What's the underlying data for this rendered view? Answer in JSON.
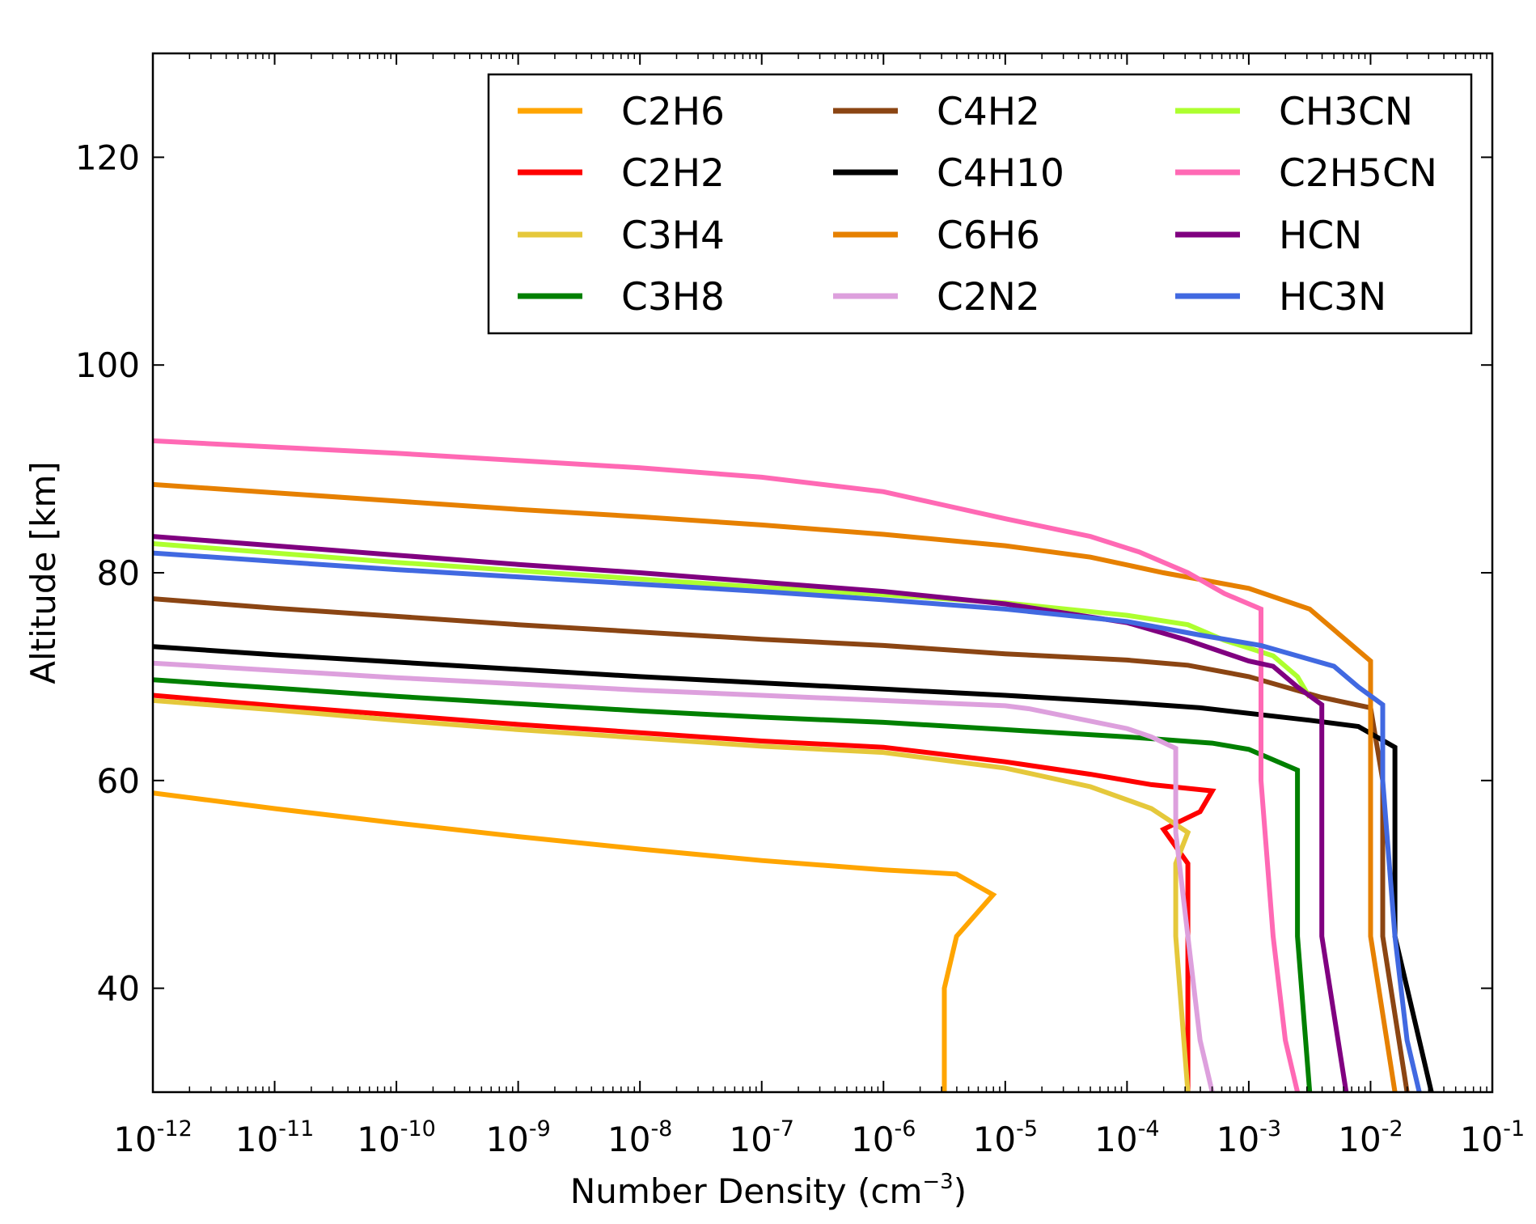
{
  "chart_data": {
    "type": "line",
    "xscale": "log",
    "xlim": [
      -12,
      -1
    ],
    "ylim": [
      30,
      130
    ],
    "xlabel": {
      "base": "Number Density (cm",
      "exp": "−3",
      "close": ")"
    },
    "ylabel": "Altitude [km]",
    "x_ticks": [
      {
        "mantissa": "10",
        "exp": "-12"
      },
      {
        "mantissa": "10",
        "exp": "-11"
      },
      {
        "mantissa": "10",
        "exp": "-10"
      },
      {
        "mantissa": "10",
        "exp": "-9"
      },
      {
        "mantissa": "10",
        "exp": "-8"
      },
      {
        "mantissa": "10",
        "exp": "-7"
      },
      {
        "mantissa": "10",
        "exp": "-6"
      },
      {
        "mantissa": "10",
        "exp": "-5"
      },
      {
        "mantissa": "10",
        "exp": "-4"
      },
      {
        "mantissa": "10",
        "exp": "-3"
      },
      {
        "mantissa": "10",
        "exp": "-2"
      },
      {
        "mantissa": "10",
        "exp": "-1"
      }
    ],
    "y_ticks": [
      "40",
      "60",
      "80",
      "100",
      "120"
    ],
    "legend_location": "upper-right",
    "legend_columns": 3,
    "series": [
      {
        "name": "C2H6",
        "color": "#FFA500",
        "points": [
          [
            -12,
            58.8
          ],
          [
            -11,
            57.3
          ],
          [
            -10,
            55.9
          ],
          [
            -9,
            54.6
          ],
          [
            -8,
            53.4
          ],
          [
            -7,
            52.3
          ],
          [
            -6,
            51.4
          ],
          [
            -5.4,
            51
          ],
          [
            -5.1,
            49
          ],
          [
            -5.4,
            45
          ],
          [
            -5.5,
            40
          ],
          [
            -5.5,
            30
          ]
        ]
      },
      {
        "name": "C2H2",
        "color": "#FF0000",
        "points": [
          [
            -12,
            68.2
          ],
          [
            -11,
            67.2
          ],
          [
            -10,
            66.3
          ],
          [
            -9,
            65.4
          ],
          [
            -8,
            64.6
          ],
          [
            -7,
            63.8
          ],
          [
            -6,
            63.2
          ],
          [
            -5,
            61.8
          ],
          [
            -4.3,
            60.6
          ],
          [
            -3.8,
            59.6
          ],
          [
            -3.3,
            59
          ],
          [
            -3.4,
            57
          ],
          [
            -3.7,
            55.3
          ],
          [
            -3.5,
            52
          ],
          [
            -3.5,
            45
          ],
          [
            -3.5,
            30
          ]
        ]
      },
      {
        "name": "C3H4",
        "color": "#E5C83B",
        "points": [
          [
            -12,
            67.7
          ],
          [
            -11,
            66.8
          ],
          [
            -10,
            65.8
          ],
          [
            -9,
            64.9
          ],
          [
            -8,
            64.1
          ],
          [
            -7,
            63.3
          ],
          [
            -6,
            62.7
          ],
          [
            -5,
            61.2
          ],
          [
            -4.3,
            59.4
          ],
          [
            -3.8,
            57.3
          ],
          [
            -3.5,
            55
          ],
          [
            -3.6,
            52
          ],
          [
            -3.6,
            45
          ],
          [
            -3.5,
            30
          ]
        ]
      },
      {
        "name": "C3H8",
        "color": "#008000",
        "points": [
          [
            -12,
            69.7
          ],
          [
            -11,
            68.9
          ],
          [
            -10,
            68.1
          ],
          [
            -9,
            67.4
          ],
          [
            -8,
            66.7
          ],
          [
            -7,
            66.1
          ],
          [
            -6,
            65.6
          ],
          [
            -5,
            64.9
          ],
          [
            -4,
            64.2
          ],
          [
            -3.3,
            63.6
          ],
          [
            -3.0,
            63
          ],
          [
            -2.6,
            61
          ],
          [
            -2.6,
            55
          ],
          [
            -2.6,
            45
          ],
          [
            -2.5,
            30
          ]
        ]
      },
      {
        "name": "C4H2",
        "color": "#8B4513",
        "points": [
          [
            -12,
            77.5
          ],
          [
            -11,
            76.6
          ],
          [
            -10,
            75.8
          ],
          [
            -9,
            75
          ],
          [
            -8,
            74.3
          ],
          [
            -7,
            73.6
          ],
          [
            -6,
            73
          ],
          [
            -5,
            72.2
          ],
          [
            -4,
            71.6
          ],
          [
            -3.5,
            71.1
          ],
          [
            -3,
            70
          ],
          [
            -2.7,
            69
          ],
          [
            -2.4,
            68
          ],
          [
            -2.0,
            67
          ],
          [
            -1.9,
            60
          ],
          [
            -1.9,
            45
          ],
          [
            -1.7,
            30
          ]
        ]
      },
      {
        "name": "C4H10",
        "color": "#000000",
        "points": [
          [
            -12,
            72.9
          ],
          [
            -11,
            72.1
          ],
          [
            -10,
            71.4
          ],
          [
            -9,
            70.7
          ],
          [
            -8,
            70
          ],
          [
            -7,
            69.4
          ],
          [
            -6,
            68.8
          ],
          [
            -5,
            68.2
          ],
          [
            -4,
            67.5
          ],
          [
            -3.4,
            67
          ],
          [
            -2.5,
            65.8
          ],
          [
            -2.1,
            65.2
          ],
          [
            -1.8,
            63.2
          ],
          [
            -1.8,
            45
          ],
          [
            -1.6,
            35
          ],
          [
            -1.5,
            30
          ]
        ]
      },
      {
        "name": "C6H6",
        "color": "#E68000",
        "points": [
          [
            -12,
            88.5
          ],
          [
            -11,
            87.7
          ],
          [
            -10,
            86.9
          ],
          [
            -9,
            86.1
          ],
          [
            -8,
            85.4
          ],
          [
            -7,
            84.6
          ],
          [
            -6,
            83.7
          ],
          [
            -5,
            82.6
          ],
          [
            -4.3,
            81.5
          ],
          [
            -3.7,
            80
          ],
          [
            -3.0,
            78.5
          ],
          [
            -2.5,
            76.5
          ],
          [
            -2.0,
            71.5
          ],
          [
            -2.0,
            60
          ],
          [
            -2.0,
            45
          ],
          [
            -1.8,
            30
          ]
        ]
      },
      {
        "name": "C2N2",
        "color": "#DDA0DD",
        "points": [
          [
            -12,
            71.3
          ],
          [
            -11,
            70.6
          ],
          [
            -10,
            69.9
          ],
          [
            -9,
            69.3
          ],
          [
            -8,
            68.7
          ],
          [
            -7,
            68.2
          ],
          [
            -6,
            67.7
          ],
          [
            -5,
            67.2
          ],
          [
            -4.8,
            66.9
          ],
          [
            -4,
            65
          ],
          [
            -3.8,
            64.2
          ],
          [
            -3.6,
            63.1
          ],
          [
            -3.6,
            55
          ],
          [
            -3.5,
            45
          ],
          [
            -3.4,
            35
          ],
          [
            -3.3,
            30
          ]
        ]
      },
      {
        "name": "CH3CN",
        "color": "#ADFF2F",
        "points": [
          [
            -12,
            82.8
          ],
          [
            -11,
            81.9
          ],
          [
            -10,
            81
          ],
          [
            -9,
            80.2
          ],
          [
            -8,
            79.4
          ],
          [
            -7,
            78.6
          ],
          [
            -6,
            77.9
          ],
          [
            -5,
            77.1
          ],
          [
            -4,
            75.9
          ],
          [
            -3.5,
            75
          ],
          [
            -3.2,
            73.5
          ],
          [
            -2.8,
            72
          ],
          [
            -2.6,
            70
          ],
          [
            -2.5,
            68
          ]
        ]
      },
      {
        "name": "C2H5CN",
        "color": "#FF69B4",
        "points": [
          [
            -12,
            92.7
          ],
          [
            -11,
            92.1
          ],
          [
            -10,
            91.5
          ],
          [
            -9,
            90.8
          ],
          [
            -8,
            90.1
          ],
          [
            -7,
            89.2
          ],
          [
            -6,
            87.8
          ],
          [
            -5.5,
            86.5
          ],
          [
            -5,
            85.2
          ],
          [
            -4.3,
            83.5
          ],
          [
            -3.9,
            82
          ],
          [
            -3.5,
            80
          ],
          [
            -3.2,
            78
          ],
          [
            -2.9,
            76.5
          ],
          [
            -2.9,
            60
          ],
          [
            -2.8,
            45
          ],
          [
            -2.7,
            35
          ],
          [
            -2.6,
            30
          ]
        ]
      },
      {
        "name": "HCN",
        "color": "#800080",
        "points": [
          [
            -12,
            83.5
          ],
          [
            -11,
            82.6
          ],
          [
            -10,
            81.7
          ],
          [
            -9,
            80.8
          ],
          [
            -8,
            80
          ],
          [
            -7,
            79.1
          ],
          [
            -6,
            78.2
          ],
          [
            -5,
            77
          ],
          [
            -4,
            75.2
          ],
          [
            -3.5,
            73.5
          ],
          [
            -3,
            71.5
          ],
          [
            -2.8,
            71
          ],
          [
            -2.6,
            69
          ],
          [
            -2.4,
            67.3
          ],
          [
            -2.4,
            60
          ],
          [
            -2.4,
            45
          ],
          [
            -2.2,
            30
          ]
        ]
      },
      {
        "name": "HC3N",
        "color": "#4169E1",
        "points": [
          [
            -12,
            81.9
          ],
          [
            -11,
            81.1
          ],
          [
            -10,
            80.3
          ],
          [
            -9,
            79.6
          ],
          [
            -8,
            78.9
          ],
          [
            -7,
            78.2
          ],
          [
            -6,
            77.4
          ],
          [
            -5,
            76.5
          ],
          [
            -4,
            75.3
          ],
          [
            -3.4,
            74
          ],
          [
            -2.9,
            73
          ],
          [
            -2.3,
            71
          ],
          [
            -2.1,
            69
          ],
          [
            -1.9,
            67.3
          ],
          [
            -1.9,
            60
          ],
          [
            -1.8,
            45
          ],
          [
            -1.7,
            35
          ],
          [
            -1.6,
            30
          ]
        ]
      }
    ]
  }
}
